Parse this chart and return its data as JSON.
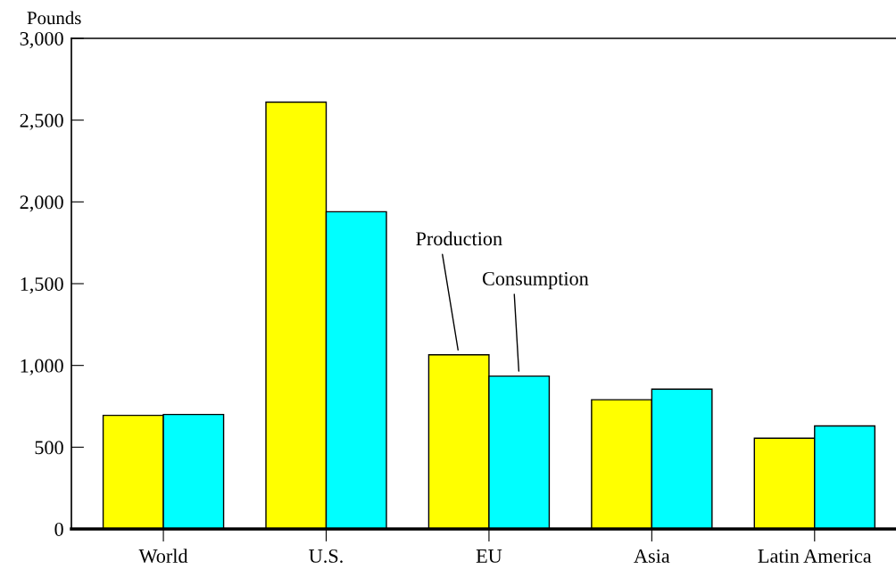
{
  "chart_data": {
    "type": "bar",
    "ylabel": "Pounds",
    "categories": [
      "World",
      "U.S.",
      "EU",
      "Asia",
      "Latin America"
    ],
    "series": [
      {
        "name": "Production",
        "color": "#ffff00",
        "values": [
          695,
          2610,
          1065,
          790,
          555
        ]
      },
      {
        "name": "Consumption",
        "color": "#00ffff",
        "values": [
          700,
          1940,
          935,
          855,
          630
        ]
      }
    ],
    "ylim": [
      0,
      3000
    ],
    "yticks": [
      {
        "value": 0,
        "label": "0"
      },
      {
        "value": 500,
        "label": "500"
      },
      {
        "value": 1000,
        "label": "1,000"
      },
      {
        "value": 1500,
        "label": "1,500"
      },
      {
        "value": 2000,
        "label": "2,000"
      },
      {
        "value": 2500,
        "label": "2,500"
      },
      {
        "value": 3000,
        "label": "3,000"
      }
    ],
    "grid": false,
    "legend": false
  }
}
